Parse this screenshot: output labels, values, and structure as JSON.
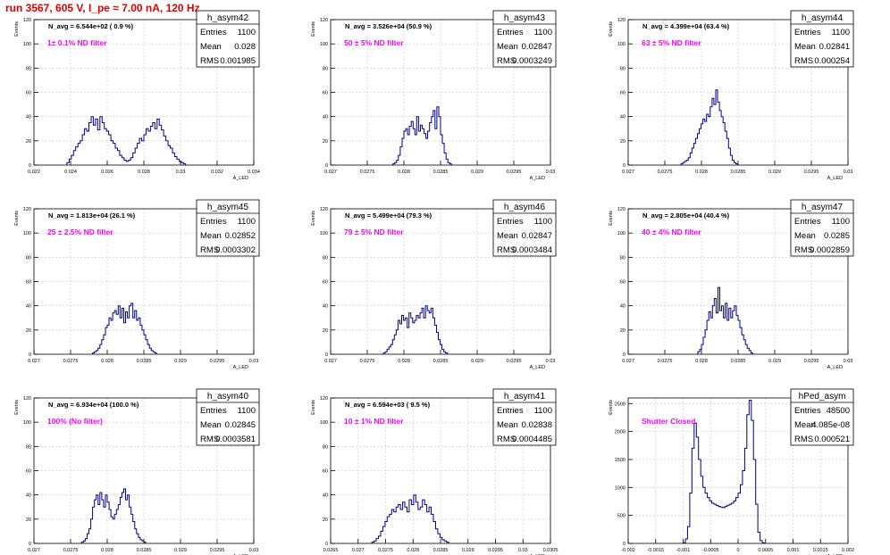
{
  "run_title": "run 3567,   605 V, I_pe ≈ 7.00 nA, 120 Hz",
  "colors": {
    "histogram": "#000088",
    "filter_text": "#ff00ff",
    "title_text": "#e00000",
    "grid": "#c8c8c8",
    "axis": "#000000"
  },
  "stats_labels": {
    "entries": "Entries",
    "mean": "Mean",
    "rms": "RMS"
  },
  "ylabel": "Events",
  "chart_data": [
    {
      "type": "histogram",
      "name": "h_asym42",
      "navg": "N_avg = 6.544e+02 ( 0.9 %)",
      "filter": "1± 0.1% ND filter",
      "stats": {
        "entries": "1100",
        "mean": "0.028",
        "rms": "0.001985"
      },
      "xlabel": "A_LED",
      "xlim": [
        0.022,
        0.034
      ],
      "ylim": [
        0,
        120
      ],
      "xticks": [
        "0.022",
        "0.024",
        "0.026",
        "0.028",
        "0.03",
        "0.032",
        "0.034"
      ],
      "xtick_values": [
        0.022,
        0.024,
        0.026,
        0.028,
        0.03,
        0.032,
        0.034
      ],
      "yticks": [
        0,
        20,
        40,
        60,
        80,
        100,
        120
      ],
      "bins": {
        "start": 0.0238,
        "width": 0.00012,
        "counts": [
          2,
          5,
          8,
          12,
          15,
          18,
          20,
          25,
          30,
          28,
          35,
          40,
          33,
          38,
          29,
          40,
          35,
          30,
          28,
          25,
          20,
          18,
          14,
          12,
          8,
          6,
          4,
          3,
          4,
          6,
          10,
          14,
          18,
          22,
          20,
          25,
          30,
          28,
          32,
          35,
          30,
          38,
          33,
          29,
          24,
          20,
          16,
          14,
          10,
          7,
          5,
          3,
          2,
          1
        ]
      }
    },
    {
      "type": "histogram",
      "name": "h_asym43",
      "navg": "N_avg = 3.526e+04 (50.9 %)",
      "filter": "50 ± 5% ND filter",
      "stats": {
        "entries": "1100",
        "mean": "0.02847",
        "rms": "0.0003249"
      },
      "xlabel": "A_LED",
      "xlim": [
        0.027,
        0.03
      ],
      "ylim": [
        0,
        120
      ],
      "xticks": [
        "0.027",
        "0.0275",
        "0.028",
        "0.0285",
        "0.029",
        "0.0295",
        "0.03"
      ],
      "xtick_values": [
        0.027,
        0.0275,
        0.028,
        0.0285,
        0.029,
        0.0295,
        0.03
      ],
      "yticks": [
        0,
        20,
        40,
        60,
        80,
        100,
        120
      ],
      "bins": {
        "start": 0.02785,
        "width": 2.5e-05,
        "counts": [
          1,
          2,
          4,
          8,
          15,
          22,
          28,
          30,
          25,
          32,
          36,
          30,
          25,
          40,
          28,
          33,
          30,
          26,
          22,
          28,
          35,
          40,
          45,
          30,
          48,
          40,
          25,
          18,
          10,
          5,
          2,
          1
        ]
      }
    },
    {
      "type": "histogram",
      "name": "h_asym44",
      "navg": "N_avg = 4.399e+04 (63.4 %)",
      "filter": "63 ± 5% ND filter",
      "stats": {
        "entries": "1100",
        "mean": "0.02841",
        "rms": "0.000254"
      },
      "xlabel": "A_LED",
      "xlim": [
        0.027,
        0.03
      ],
      "ylim": [
        0,
        120
      ],
      "xticks": [
        "0.027",
        "0.0275",
        "0.028",
        "0.0285",
        "0.029",
        "0.0295",
        "0.03"
      ],
      "xtick_values": [
        0.027,
        0.0275,
        0.028,
        0.0285,
        0.029,
        0.0295,
        0.03
      ],
      "yticks": [
        0,
        20,
        40,
        60,
        80,
        100,
        120
      ],
      "bins": {
        "start": 0.02772,
        "width": 2.5e-05,
        "counts": [
          1,
          2,
          3,
          4,
          6,
          10,
          14,
          18,
          22,
          26,
          30,
          34,
          38,
          36,
          42,
          40,
          48,
          55,
          50,
          62,
          52,
          45,
          40,
          35,
          28,
          22,
          14,
          8,
          4,
          2,
          1
        ]
      }
    },
    {
      "type": "histogram",
      "name": "h_asym45",
      "navg": "N_avg = 1.813e+04 (26.1 %)",
      "filter": "25 ± 2.5% ND filter",
      "stats": {
        "entries": "1100",
        "mean": "0.02852",
        "rms": "0.0003302"
      },
      "xlabel": "A_LED",
      "xlim": [
        0.027,
        0.03
      ],
      "ylim": [
        0,
        120
      ],
      "xticks": [
        "0.027",
        "0.0275",
        "0.028",
        "0.0285",
        "0.029",
        "0.0295",
        "0.03"
      ],
      "xtick_values": [
        0.027,
        0.0275,
        0.028,
        0.0285,
        0.029,
        0.0295,
        0.03
      ],
      "yticks": [
        0,
        20,
        40,
        60,
        80,
        100,
        120
      ],
      "bins": {
        "start": 0.0278,
        "width": 2.5e-05,
        "counts": [
          1,
          2,
          3,
          5,
          8,
          12,
          16,
          22,
          24,
          30,
          28,
          34,
          36,
          33,
          40,
          30,
          38,
          26,
          35,
          30,
          40,
          42,
          30,
          36,
          28,
          30,
          24,
          20,
          16,
          12,
          8,
          5,
          3,
          2,
          1
        ]
      }
    },
    {
      "type": "histogram",
      "name": "h_asym46",
      "navg": "N_avg = 5.499e+04 (79.3 %)",
      "filter": "79 ± 5% ND filter",
      "stats": {
        "entries": "1100",
        "mean": "0.02847",
        "rms": "0.0003484"
      },
      "xlabel": "A_LED",
      "xlim": [
        0.027,
        0.03
      ],
      "ylim": [
        0,
        120
      ],
      "xticks": [
        "0.027",
        "0.0275",
        "0.028",
        "0.0285",
        "0.029",
        "0.0295",
        "0.03"
      ],
      "xtick_values": [
        0.027,
        0.0275,
        0.028,
        0.0285,
        0.029,
        0.0295,
        0.03
      ],
      "yticks": [
        0,
        20,
        40,
        60,
        80,
        100,
        120
      ],
      "bins": {
        "start": 0.02772,
        "width": 2.5e-05,
        "counts": [
          1,
          2,
          4,
          6,
          8,
          12,
          16,
          20,
          28,
          25,
          32,
          28,
          30,
          22,
          34,
          30,
          26,
          28,
          32,
          30,
          34,
          38,
          30,
          40,
          36,
          34,
          38,
          30,
          24,
          18,
          12,
          8,
          4,
          2,
          1
        ]
      }
    },
    {
      "type": "histogram",
      "name": "h_asym47",
      "navg": "N_avg = 2.805e+04 (40.4 %)",
      "filter": "40 ± 4% ND filter",
      "stats": {
        "entries": "1100",
        "mean": "0.0285",
        "rms": "0.0002859"
      },
      "xlabel": "A_LED",
      "xlim": [
        0.027,
        0.03
      ],
      "ylim": [
        0,
        120
      ],
      "xticks": [
        "0.027",
        "0.0275",
        "0.028",
        "0.0285",
        "0.029",
        "0.0295",
        "0.03"
      ],
      "xtick_values": [
        0.027,
        0.0275,
        0.028,
        0.0285,
        0.029,
        0.0295,
        0.03
      ],
      "yticks": [
        0,
        20,
        40,
        60,
        80,
        100,
        120
      ],
      "bins": {
        "start": 0.02795,
        "width": 2.5e-05,
        "counts": [
          2,
          4,
          8,
          14,
          20,
          28,
          35,
          30,
          40,
          46,
          34,
          55,
          36,
          40,
          30,
          42,
          28,
          38,
          30,
          36,
          40,
          32,
          28,
          22,
          16,
          12,
          8,
          5,
          3,
          1
        ]
      }
    },
    {
      "type": "histogram",
      "name": "h_asym40",
      "navg": "N_avg = 6.934e+04 (100.0 %)",
      "filter": "100% (No filter)",
      "stats": {
        "entries": "1100",
        "mean": "0.02845",
        "rms": "0.0003581"
      },
      "xlabel": "A_LED",
      "xlim": [
        0.027,
        0.03
      ],
      "ylim": [
        0,
        120
      ],
      "xticks": [
        "0.027",
        "0.0275",
        "0.028",
        "0.0285",
        "0.029",
        "0.0295",
        "0.03"
      ],
      "xtick_values": [
        0.027,
        0.0275,
        0.028,
        0.0285,
        0.029,
        0.0295,
        0.03
      ],
      "yticks": [
        0,
        20,
        40,
        60,
        80,
        100,
        120
      ],
      "bins": {
        "start": 0.02765,
        "width": 2.5e-05,
        "counts": [
          1,
          2,
          4,
          8,
          12,
          20,
          30,
          36,
          40,
          32,
          42,
          36,
          30,
          40,
          34,
          28,
          22,
          20,
          24,
          28,
          32,
          38,
          42,
          45,
          36,
          40,
          30,
          24,
          18,
          12,
          8,
          5,
          3,
          2,
          1
        ]
      }
    },
    {
      "type": "histogram",
      "name": "h_asym41",
      "navg": "N_avg = 6.594e+03 ( 9.5 %)",
      "filter": "10 ± 1% ND filter",
      "stats": {
        "entries": "1100",
        "mean": "0.02838",
        "rms": "0.0004485"
      },
      "xlabel": "A_LED",
      "xlim": [
        0.0265,
        0.0305
      ],
      "ylim": [
        0,
        120
      ],
      "xticks": [
        "0.0265",
        "0.027",
        "0.0275",
        "0.028",
        "0.0285",
        "0.029",
        "0.0295",
        "0.03",
        "0.0305"
      ],
      "xtick_values": [
        0.0265,
        0.027,
        0.0275,
        0.028,
        0.0285,
        0.029,
        0.0295,
        0.03,
        0.0305
      ],
      "yticks": [
        0,
        20,
        40,
        60,
        80,
        100,
        120
      ],
      "bins": {
        "start": 0.02725,
        "width": 4e-05,
        "counts": [
          1,
          2,
          4,
          6,
          10,
          14,
          18,
          22,
          24,
          28,
          26,
          30,
          32,
          28,
          34,
          30,
          26,
          36,
          32,
          40,
          34,
          28,
          30,
          36,
          32,
          26,
          30,
          24,
          18,
          12,
          8,
          5,
          3,
          2,
          1
        ]
      }
    },
    {
      "type": "histogram",
      "name": "hPed_asym",
      "navg": "",
      "filter": "Shutter Closed",
      "stats": {
        "entries": "48500",
        "mean": "4.085e-08",
        "rms": "0.000521"
      },
      "xlabel": "A_LED",
      "xlim": [
        -0.002,
        0.002
      ],
      "ylim": [
        0,
        2600
      ],
      "xticks": [
        "-0.002",
        "-0.0015",
        "-0.001",
        "-0.0005",
        "0",
        "0.0005",
        "0.001",
        "0.0015",
        "0.002"
      ],
      "xtick_values": [
        -0.002,
        -0.0015,
        -0.001,
        -0.0005,
        0,
        0.0005,
        0.001,
        0.0015,
        0.002
      ],
      "yticks": [
        0,
        500,
        1000,
        1500,
        2000,
        2500
      ],
      "bins": {
        "start": -0.001,
        "width": 4e-05,
        "counts": [
          10,
          80,
          300,
          900,
          1700,
          2150,
          1900,
          1500,
          1200,
          1000,
          900,
          820,
          760,
          720,
          700,
          680,
          660,
          650,
          640,
          660,
          680,
          700,
          720,
          760,
          820,
          900,
          1050,
          1300,
          1700,
          2300,
          2560,
          2200,
          1500,
          700,
          200,
          50,
          10
        ]
      }
    }
  ]
}
